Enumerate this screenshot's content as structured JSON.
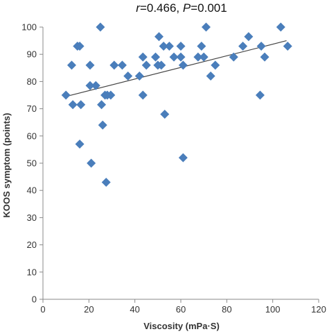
{
  "chart_data": {
    "type": "scatter",
    "title": "r=0.466, P=0.001",
    "title_parts": {
      "r_symbol": "r",
      "r_value": "=0.466, ",
      "p_symbol": "P",
      "p_value": "=0.001"
    },
    "xlabel": "Viscosity (mPa·S)",
    "ylabel": "KOOS symptom (points)",
    "xlim": [
      0,
      120
    ],
    "ylim": [
      0,
      100
    ],
    "xticks": [
      "0",
      "20",
      "40",
      "60",
      "80",
      "100",
      "120"
    ],
    "yticks": [
      "0",
      "10",
      "20",
      "30",
      "40",
      "50",
      "60",
      "70",
      "80",
      "90",
      "100"
    ],
    "grid": false,
    "legend": "none",
    "marker_color": "#4a7ebb",
    "marker_shape": "diamond",
    "trendline": {
      "x": [
        10,
        106
      ],
      "y": [
        74.5,
        95.0
      ]
    },
    "points": [
      {
        "x": 10,
        "y": 75
      },
      {
        "x": 12.5,
        "y": 86
      },
      {
        "x": 13,
        "y": 71.5
      },
      {
        "x": 15,
        "y": 93
      },
      {
        "x": 16,
        "y": 93
      },
      {
        "x": 16,
        "y": 57
      },
      {
        "x": 16.5,
        "y": 71.5
      },
      {
        "x": 20.5,
        "y": 86
      },
      {
        "x": 20.5,
        "y": 78.5
      },
      {
        "x": 21,
        "y": 50
      },
      {
        "x": 23,
        "y": 78.5
      },
      {
        "x": 25,
        "y": 100
      },
      {
        "x": 25.5,
        "y": 71.5
      },
      {
        "x": 26,
        "y": 64
      },
      {
        "x": 27,
        "y": 75
      },
      {
        "x": 27.5,
        "y": 43
      },
      {
        "x": 28,
        "y": 75
      },
      {
        "x": 29.5,
        "y": 75
      },
      {
        "x": 31,
        "y": 86
      },
      {
        "x": 34.5,
        "y": 86
      },
      {
        "x": 37,
        "y": 82
      },
      {
        "x": 42,
        "y": 82
      },
      {
        "x": 43.5,
        "y": 75
      },
      {
        "x": 43.5,
        "y": 89
      },
      {
        "x": 45,
        "y": 86
      },
      {
        "x": 49,
        "y": 89
      },
      {
        "x": 50,
        "y": 86
      },
      {
        "x": 50.5,
        "y": 96.5
      },
      {
        "x": 51.5,
        "y": 86
      },
      {
        "x": 52.5,
        "y": 93
      },
      {
        "x": 53,
        "y": 68
      },
      {
        "x": 55,
        "y": 93
      },
      {
        "x": 57,
        "y": 89
      },
      {
        "x": 60,
        "y": 93
      },
      {
        "x": 60,
        "y": 89
      },
      {
        "x": 61,
        "y": 52
      },
      {
        "x": 61,
        "y": 86
      },
      {
        "x": 67.5,
        "y": 89
      },
      {
        "x": 69,
        "y": 93
      },
      {
        "x": 70,
        "y": 89
      },
      {
        "x": 71,
        "y": 100
      },
      {
        "x": 73,
        "y": 82
      },
      {
        "x": 75,
        "y": 86
      },
      {
        "x": 83,
        "y": 89
      },
      {
        "x": 87,
        "y": 93
      },
      {
        "x": 89.5,
        "y": 96.5
      },
      {
        "x": 94.5,
        "y": 75
      },
      {
        "x": 95,
        "y": 93
      },
      {
        "x": 96.5,
        "y": 89
      },
      {
        "x": 103.5,
        "y": 100
      },
      {
        "x": 106.5,
        "y": 93
      }
    ]
  }
}
